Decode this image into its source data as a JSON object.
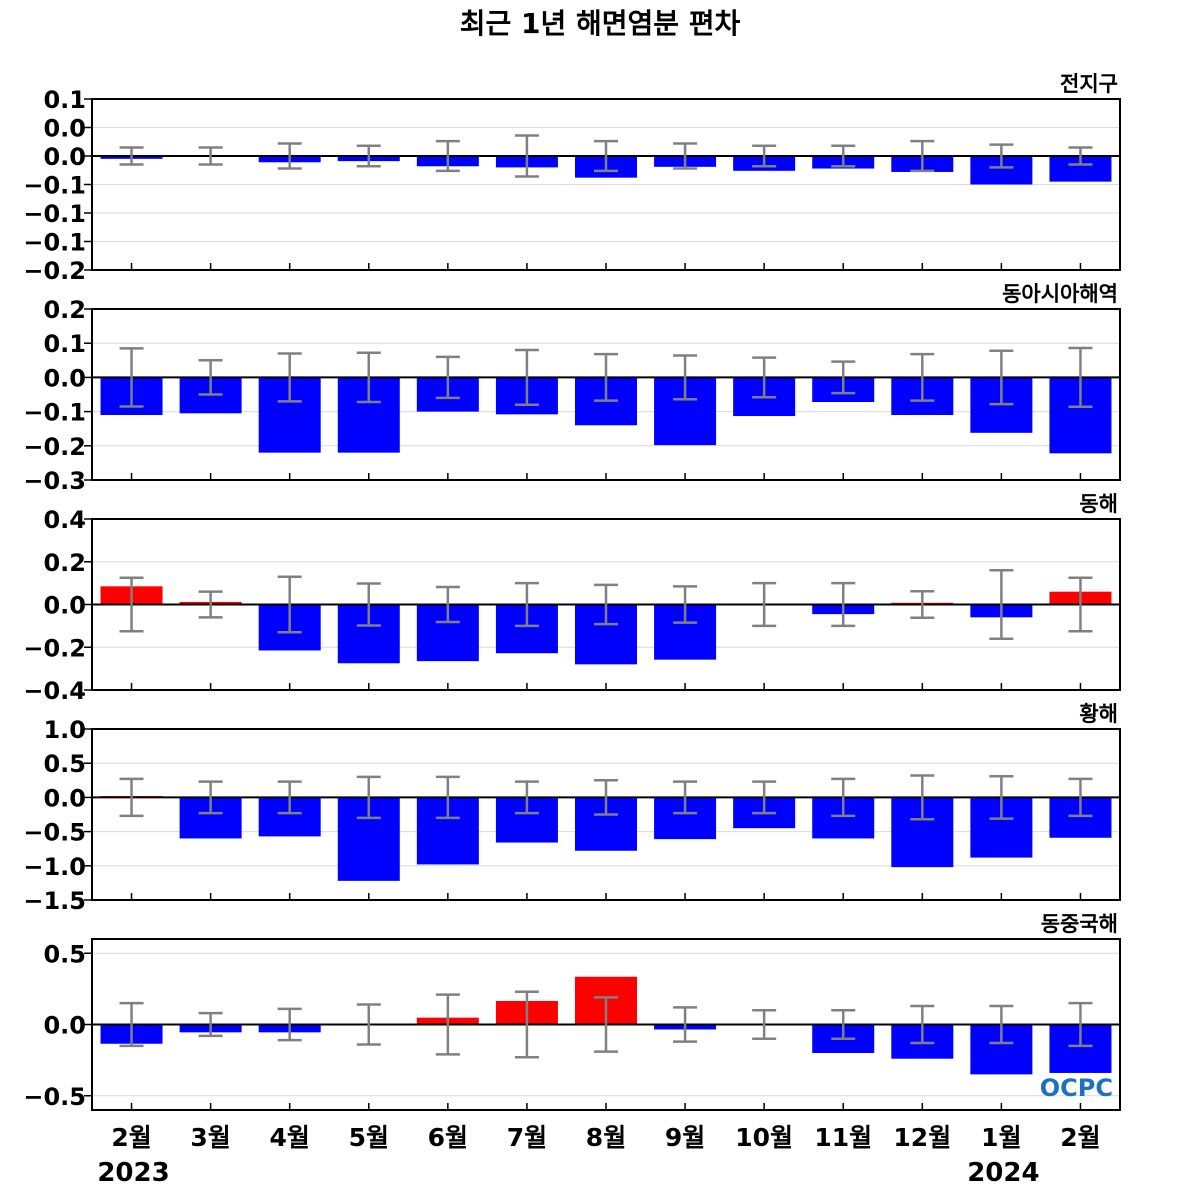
{
  "chart_data": {
    "type": "bar",
    "title": "최근 1년 해면염분 편차",
    "categories": [
      "2월",
      "3월",
      "4월",
      "5월",
      "6월",
      "7월",
      "8월",
      "9월",
      "10월",
      "11월",
      "12월",
      "1월",
      "2월"
    ],
    "year_labels": [
      {
        "index": 0,
        "label": "2023"
      },
      {
        "index": 11,
        "label": "2024"
      }
    ],
    "logo_text": "OCPC",
    "colors": {
      "positive": "#ff0000",
      "negative": "#0000ff",
      "errorbar": "#808080",
      "zero_line": "#000000",
      "grid": "#d9d9d9"
    },
    "panels": [
      {
        "name": "전지구",
        "ylim": [
          -0.2,
          0.1
        ],
        "ytick_values": [
          0.1,
          0.05,
          0.0,
          -0.05,
          -0.1,
          -0.15,
          -0.2
        ],
        "ytick_labels": [
          "0.1",
          "0.0",
          "0.0",
          "−0.1",
          "−0.1",
          "−0.1",
          "−0.2"
        ],
        "values": [
          -0.005,
          -0.001,
          -0.011,
          -0.009,
          -0.018,
          -0.02,
          -0.038,
          -0.019,
          -0.026,
          -0.022,
          -0.028,
          -0.05,
          -0.045
        ],
        "errors": [
          0.015,
          0.015,
          0.022,
          0.018,
          0.026,
          0.036,
          0.026,
          0.022,
          0.018,
          0.018,
          0.026,
          0.02,
          0.015
        ]
      },
      {
        "name": "동아시아해역",
        "ylim": [
          -0.3,
          0.2
        ],
        "ytick_values": [
          0.2,
          0.1,
          0.0,
          -0.1,
          -0.2,
          -0.3
        ],
        "ytick_labels": [
          "0.2",
          "0.1",
          "0.0",
          "−0.1",
          "−0.2",
          "−0.3"
        ],
        "values": [
          -0.11,
          -0.105,
          -0.22,
          -0.22,
          -0.1,
          -0.108,
          -0.14,
          -0.198,
          -0.113,
          -0.072,
          -0.11,
          -0.162,
          -0.222
        ],
        "errors": [
          0.085,
          0.05,
          0.07,
          0.072,
          0.06,
          0.08,
          0.068,
          0.064,
          0.058,
          0.046,
          0.068,
          0.078,
          0.086
        ]
      },
      {
        "name": "동해",
        "ylim": [
          -0.4,
          0.4
        ],
        "ytick_values": [
          0.4,
          0.2,
          0.0,
          -0.2,
          -0.4
        ],
        "ytick_labels": [
          "0.4",
          "0.2",
          "0.0",
          "−0.2",
          "−0.4"
        ],
        "values": [
          0.085,
          0.012,
          -0.215,
          -0.275,
          -0.265,
          -0.228,
          -0.28,
          -0.258,
          0.003,
          -0.045,
          0.008,
          -0.06,
          0.06
        ],
        "errors": [
          0.125,
          0.06,
          0.13,
          0.098,
          0.082,
          0.1,
          0.092,
          0.085,
          0.1,
          0.1,
          0.062,
          0.16,
          0.125
        ]
      },
      {
        "name": "황해",
        "ylim": [
          -1.5,
          1.0
        ],
        "ytick_values": [
          1.0,
          0.5,
          0.0,
          -0.5,
          -1.0,
          -1.5
        ],
        "ytick_labels": [
          "1.0",
          "0.5",
          "0.0",
          "−0.5",
          "−1.0",
          "−1.5"
        ],
        "values": [
          0.02,
          -0.6,
          -0.57,
          -1.22,
          -0.98,
          -0.66,
          -0.78,
          -0.61,
          -0.45,
          -0.6,
          -1.02,
          -0.88,
          -0.59
        ],
        "errors": [
          0.27,
          0.23,
          0.23,
          0.3,
          0.3,
          0.23,
          0.25,
          0.23,
          0.23,
          0.27,
          0.32,
          0.31,
          0.27
        ]
      },
      {
        "name": "동중국해",
        "ylim": [
          -0.6,
          0.6
        ],
        "ytick_values": [
          0.5,
          0.0,
          -0.5
        ],
        "ytick_labels": [
          "0.5",
          "0.0",
          "−0.5"
        ],
        "values": [
          -0.135,
          -0.055,
          -0.055,
          0.005,
          0.048,
          0.165,
          0.335,
          -0.035,
          0.005,
          -0.2,
          -0.24,
          -0.35,
          -0.34
        ],
        "errors": [
          0.15,
          0.08,
          0.11,
          0.14,
          0.21,
          0.23,
          0.19,
          0.12,
          0.1,
          0.1,
          0.13,
          0.13,
          0.15
        ]
      }
    ]
  }
}
